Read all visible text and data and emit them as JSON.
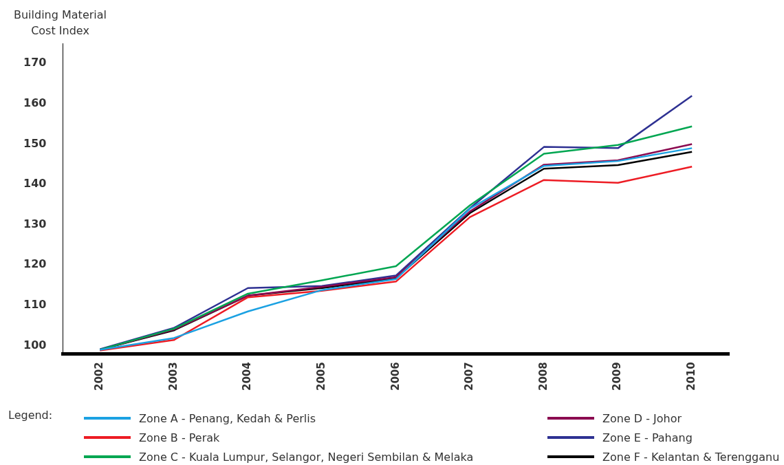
{
  "chart_data": {
    "type": "line",
    "ylabel": "Building Material Cost Index",
    "legend_title": "Legend:",
    "categories": [
      "2002",
      "2003",
      "2004",
      "2005",
      "2006",
      "2007",
      "2008",
      "2009",
      "2010"
    ],
    "ylim": [
      98,
      175
    ],
    "yticks": [
      100,
      110,
      120,
      130,
      140,
      150,
      160,
      170
    ],
    "grid": false,
    "legend": "bottom",
    "marker": "none",
    "line_style": "solid",
    "series": [
      {
        "name": "Zone A - Penang, Kedah & Perlis",
        "color": "#1ba1e2",
        "values": [
          99,
          101.9,
          108.5,
          113.8,
          116.5,
          134,
          144.6,
          145.8,
          149
        ]
      },
      {
        "name": "Zone B - Perak",
        "color": "#ed1c24",
        "values": [
          98.8,
          101.4,
          112,
          113.6,
          115.9,
          131.9,
          141.1,
          140.4,
          144.4
        ]
      },
      {
        "name": "Zone C - Kuala Lumpur, Selangor, Negeri Sembilan & Melaka",
        "color": "#00a651",
        "values": [
          99,
          104.2,
          112.9,
          116.2,
          119.7,
          134.8,
          147.6,
          149.8,
          154.4
        ]
      },
      {
        "name": "Zone D - Johor",
        "color": "#8b0a50",
        "values": [
          99,
          104,
          112.4,
          114.6,
          117,
          133.3,
          144.9,
          146,
          150
        ]
      },
      {
        "name": "Zone E - Pahang",
        "color": "#2e3192",
        "values": [
          99.1,
          104.4,
          114.3,
          114.8,
          117.4,
          134.1,
          149.3,
          149,
          162
        ]
      },
      {
        "name": "Zone F - Kelantan & Terengganu",
        "color": "#000000",
        "values": [
          99,
          103.8,
          112.4,
          114.3,
          116.7,
          132.9,
          143.9,
          144.8,
          148.1
        ]
      }
    ]
  }
}
